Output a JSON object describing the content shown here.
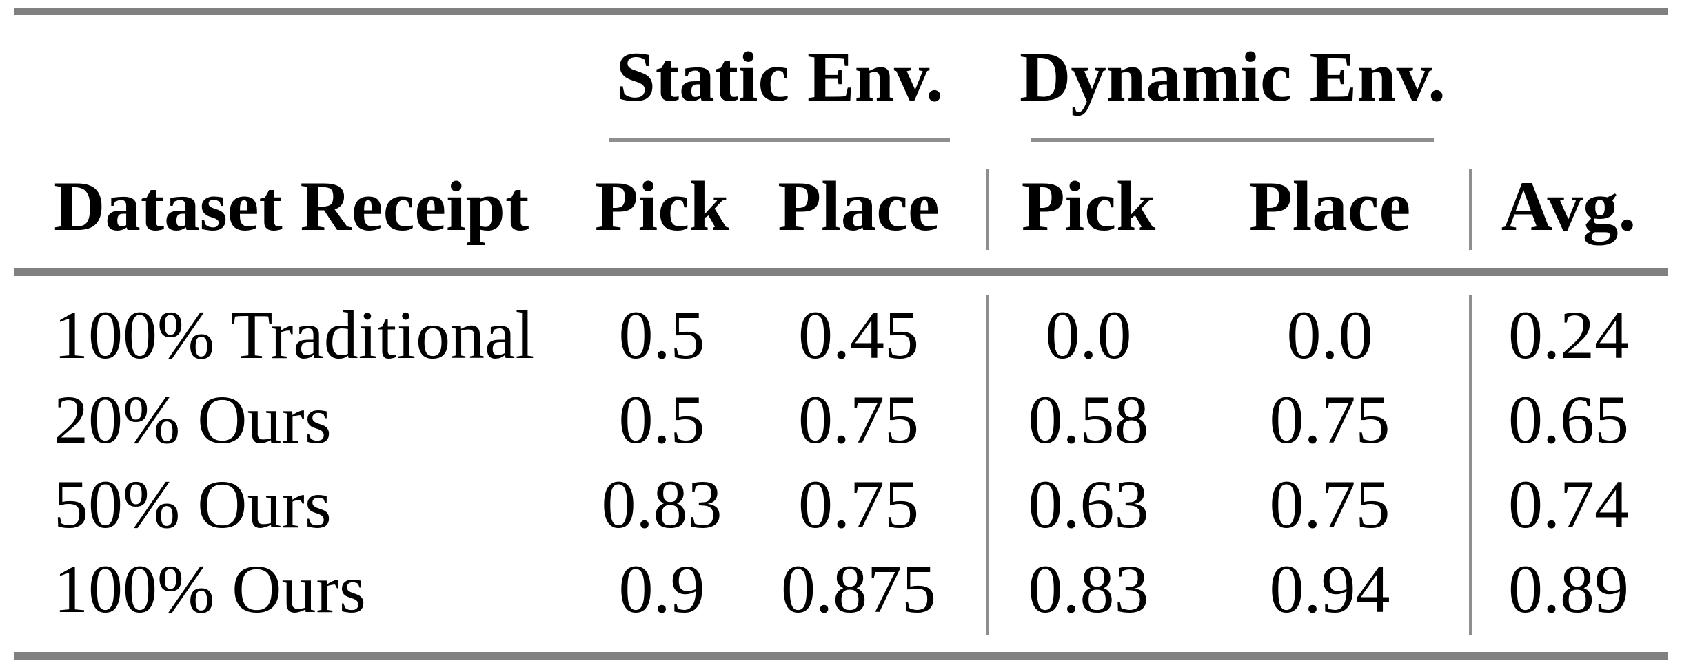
{
  "figure": {
    "description": "results-table"
  },
  "colors": {
    "background": "#ffffff",
    "text": "#000000",
    "thick_rule": "#808080",
    "thin_rule": "#8e8e8e"
  },
  "table": {
    "column_groups": [
      {
        "label": "Static Env."
      },
      {
        "label": "Dynamic Env."
      }
    ],
    "header": {
      "row_label": "Dataset Receipt",
      "columns": [
        "Pick",
        "Place",
        "Pick",
        "Place",
        "Avg."
      ]
    },
    "rows": [
      {
        "label": "100% Traditional",
        "values": [
          "0.5",
          "0.45",
          "0.0",
          "0.0",
          "0.24"
        ]
      },
      {
        "label": "20% Ours",
        "values": [
          "0.5",
          "0.75",
          "0.58",
          "0.75",
          "0.65"
        ]
      },
      {
        "label": "50% Ours",
        "values": [
          "0.83",
          "0.75",
          "0.63",
          "0.75",
          "0.74"
        ]
      },
      {
        "label": "100% Ours",
        "values": [
          "0.9",
          "0.875",
          "0.83",
          "0.94",
          "0.89"
        ]
      }
    ]
  }
}
